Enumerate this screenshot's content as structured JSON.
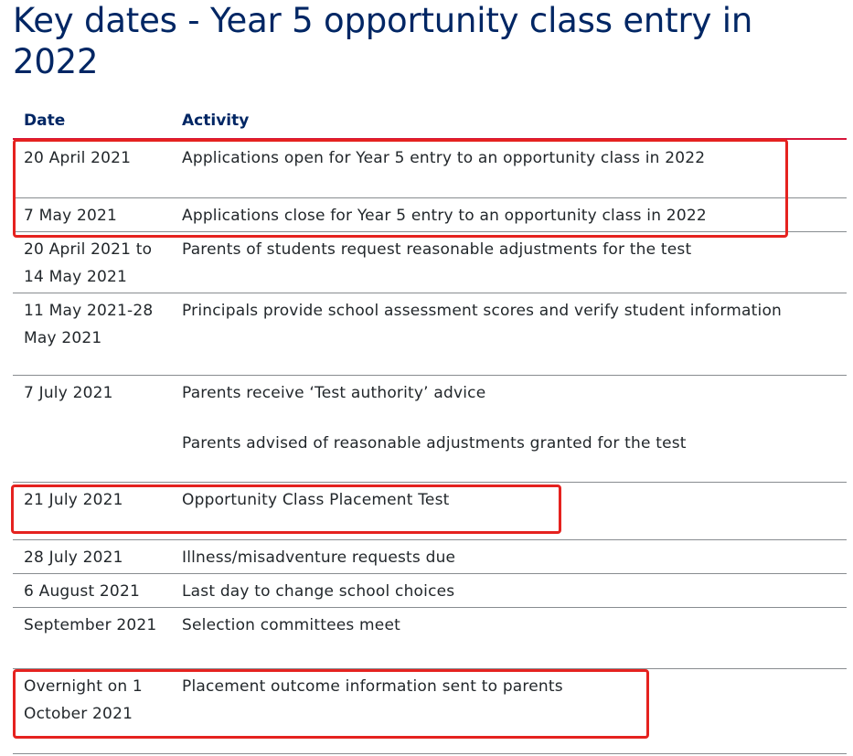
{
  "title": "Key dates - Year 5 opportunity class entry in 2022",
  "table": {
    "headers": {
      "date": "Date",
      "activity": "Activity"
    },
    "rows": [
      {
        "date": "20 April 2021",
        "activity": [
          "Applications open for Year 5 entry to an opportunity class in 2022"
        ]
      },
      {
        "date": "7 May 2021",
        "activity": [
          "Applications close for Year 5 entry to an opportunity class in 2022"
        ]
      },
      {
        "date": "20 April 2021 to 14 May 2021",
        "activity": [
          "Parents of students request reasonable adjustments for the test"
        ]
      },
      {
        "date": "11 May 2021-28 May 2021",
        "activity": [
          "Principals provide school assessment scores and verify student information"
        ]
      },
      {
        "date": "7 July 2021",
        "activity": [
          "Parents receive ‘Test authority’ advice",
          "Parents advised of reasonable adjustments granted for the test"
        ]
      },
      {
        "date": "21 July 2021",
        "activity": [
          "Opportunity Class Placement Test"
        ]
      },
      {
        "date": "28 July 2021",
        "activity": [
          "Illness/misadventure requests due"
        ]
      },
      {
        "date": "6 August 2021",
        "activity": [
          "Last day to change school choices"
        ]
      },
      {
        "date": "September 2021",
        "activity": [
          "Selection committees meet"
        ]
      },
      {
        "date": "Overnight on 1 October 2021",
        "activity": [
          "Placement outcome information sent to parents"
        ]
      }
    ]
  },
  "colors": {
    "title": "#002664",
    "header_rule": "#d7153a",
    "annotation": "#e5221f"
  }
}
